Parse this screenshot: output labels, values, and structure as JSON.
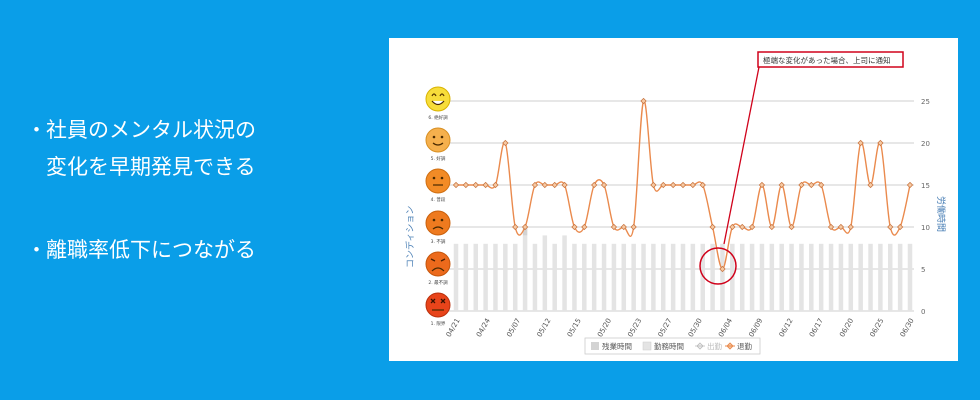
{
  "bullets": [
    {
      "marker": "・",
      "lines": [
        "社員のメンタル状況の",
        "変化を早期発見できる"
      ]
    },
    {
      "marker": "・",
      "lines": [
        "離職率低下につながる"
      ]
    }
  ],
  "emoji_labels": [
    "6. 絶好調",
    "5. 好調",
    "4. 普段",
    "3. 不調",
    "2. 最不調",
    "1. 限界"
  ],
  "axis_left_title": "コンディション",
  "axis_right_title": "労働時間",
  "callout": "極端な変化があった場合、上司に通知",
  "legend": [
    "残業時間",
    "勤務時間",
    "出勤",
    "退勤"
  ],
  "colors": {
    "background": "#0a9ee8",
    "line": "#ea8a4d",
    "marker_fill": "#f6c9a3",
    "bar": "#e4e4e4",
    "callout": "#d0021b"
  },
  "chart_data": {
    "type": "line",
    "yticks": [
      0,
      5,
      10,
      15,
      20,
      25
    ],
    "ylim": [
      0,
      25
    ],
    "xticks": [
      "04/21",
      "04/24",
      "05/07",
      "05/12",
      "05/15",
      "05/20",
      "05/23",
      "05/27",
      "05/30",
      "06/04",
      "06/09",
      "06/12",
      "06/17",
      "06/20",
      "06/25",
      "06/30"
    ],
    "series": [
      {
        "name": "退勤",
        "values": [
          15,
          15,
          15,
          15,
          15,
          20,
          10,
          10,
          15,
          15,
          15,
          15,
          10,
          10,
          15,
          15,
          10,
          10,
          10,
          25,
          15,
          15,
          15,
          15,
          15,
          15,
          10,
          5,
          10,
          10,
          10,
          15,
          10,
          15,
          10,
          15,
          15,
          15,
          10,
          10,
          10,
          20,
          15,
          20,
          10,
          10,
          15
        ]
      },
      {
        "name": "勤務時間",
        "values": [
          8,
          8,
          8,
          8,
          8,
          8,
          8,
          9,
          8,
          9,
          8,
          9,
          8,
          8,
          8,
          8,
          8,
          8,
          8,
          8,
          8,
          8,
          8,
          8,
          8,
          8,
          8,
          8,
          8,
          8,
          8,
          8,
          8,
          8,
          8,
          8,
          8,
          8,
          8,
          8,
          8,
          8,
          8,
          8,
          8,
          8,
          8
        ]
      },
      {
        "name": "残業時間",
        "values": [
          0,
          0,
          0,
          0,
          0,
          0,
          0,
          1,
          0,
          0,
          0,
          0,
          0,
          0,
          0,
          0,
          0,
          0,
          0,
          0,
          0,
          0,
          0,
          0,
          0,
          0,
          0,
          0,
          0,
          0,
          0,
          0,
          0,
          0,
          0,
          0,
          0,
          0,
          0,
          0,
          0,
          0,
          0,
          0,
          0,
          0,
          0
        ]
      }
    ]
  }
}
